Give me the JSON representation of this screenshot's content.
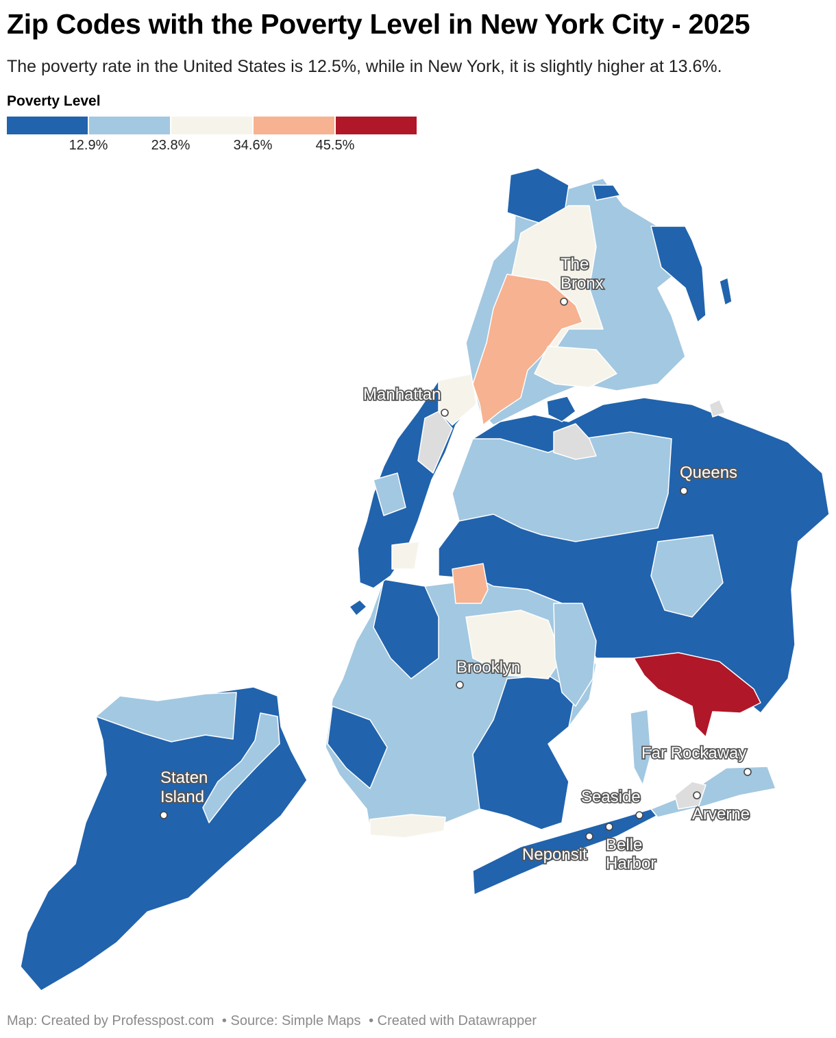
{
  "title": "Zip Codes with the Poverty Level in New York City - 2025",
  "subtitle": "The poverty rate in the United States is 12.5%, while in New York, it is slightly higher at 13.6%.",
  "legend": {
    "title": "Poverty Level",
    "colors": [
      "#2163ad",
      "#a3c8e1",
      "#f6f4ea",
      "#f6b291",
      "#b01728"
    ],
    "ticks": [
      "12.9%",
      "23.8%",
      "34.6%",
      "45.5%"
    ]
  },
  "no_data_color": "#dddddd",
  "labels": {
    "bronx": [
      "The",
      "Bronx"
    ],
    "manhattan": "Manhattan",
    "queens": "Queens",
    "brooklyn": "Brooklyn",
    "staten_island": [
      "Staten",
      "Island"
    ],
    "far_rockaway": "Far Rockaway",
    "seaside": "Seaside",
    "arverne": "Arverne",
    "neponsit": "Neponsit",
    "belle_harbor": [
      "Belle",
      "Harbor"
    ]
  },
  "footer": {
    "map_credit": "Map: Created by Professpost.com",
    "source": "• Source: Simple Maps",
    "tool": "• Created with Datawrapper"
  }
}
